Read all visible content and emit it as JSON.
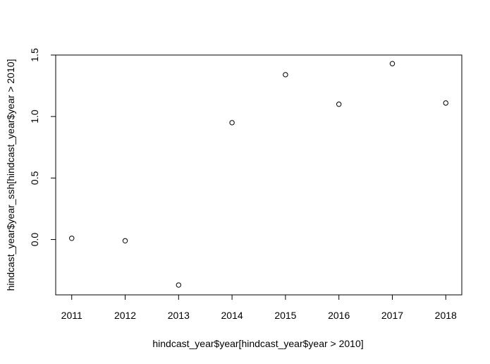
{
  "chart_data": {
    "type": "scatter",
    "title": "",
    "xlabel": "hindcast_year$year[hindcast_year$year > 2010]",
    "ylabel": "hindcast_year$year_ssh[hindcast_year$year > 2010]",
    "xlim": [
      2010.7,
      2018.3
    ],
    "ylim": [
      -0.45,
      1.5
    ],
    "x_ticks": [
      2011,
      2012,
      2013,
      2014,
      2015,
      2016,
      2017,
      2018
    ],
    "x_tick_labels": [
      "2011",
      "2012",
      "2013",
      "2014",
      "2015",
      "2016",
      "2017",
      "2018"
    ],
    "y_ticks": [
      0.0,
      0.5,
      1.0,
      1.5
    ],
    "y_tick_labels": [
      "0.0",
      "0.5",
      "1.0",
      "1.5"
    ],
    "grid": false,
    "marker": "open-circle",
    "colors": {
      "points": "#000000",
      "axes": "#000000",
      "background": "#ffffff"
    },
    "points": [
      {
        "x": 2011,
        "y": 0.01
      },
      {
        "x": 2012,
        "y": -0.01
      },
      {
        "x": 2013,
        "y": -0.37
      },
      {
        "x": 2014,
        "y": 0.95
      },
      {
        "x": 2015,
        "y": 1.34
      },
      {
        "x": 2016,
        "y": 1.1
      },
      {
        "x": 2017,
        "y": 1.43
      },
      {
        "x": 2018,
        "y": 1.11
      }
    ]
  }
}
